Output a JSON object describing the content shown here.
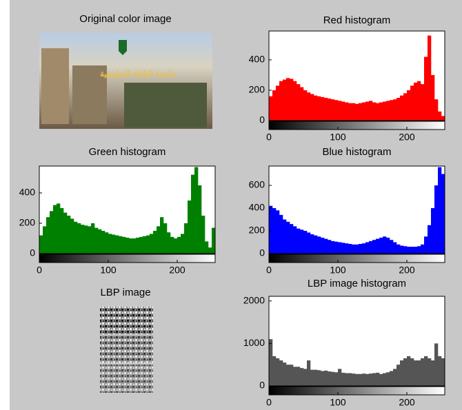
{
  "images": [
    {
      "title": "Original color image",
      "caption": "جامعة البلقاء التطبيقية"
    },
    {
      "title": "LBP image"
    }
  ],
  "chart_data": [
    {
      "type": "histogram",
      "title": "Red histogram",
      "color": "#ff0000",
      "bins": [
        0,
        5,
        10,
        15,
        20,
        25,
        30,
        35,
        40,
        45,
        50,
        55,
        60,
        65,
        70,
        75,
        80,
        85,
        90,
        95,
        100,
        105,
        110,
        115,
        120,
        125,
        130,
        135,
        140,
        145,
        150,
        155,
        160,
        165,
        170,
        175,
        180,
        185,
        190,
        195,
        200,
        205,
        210,
        215,
        220,
        225,
        230,
        235,
        240,
        245,
        250,
        255
      ],
      "values": [
        160,
        200,
        230,
        260,
        270,
        280,
        275,
        260,
        240,
        220,
        200,
        185,
        175,
        165,
        160,
        155,
        150,
        145,
        140,
        135,
        130,
        125,
        120,
        115,
        115,
        110,
        115,
        120,
        125,
        130,
        120,
        115,
        120,
        125,
        130,
        135,
        140,
        150,
        165,
        180,
        200,
        230,
        250,
        260,
        240,
        420,
        560,
        300,
        140,
        60,
        30
      ],
      "xlim": [
        0,
        255
      ],
      "xticks": [
        0,
        100,
        200
      ],
      "ylim": [
        0,
        590
      ],
      "yticks": [
        0,
        200,
        400
      ]
    },
    {
      "type": "histogram",
      "title": "Green histogram",
      "color": "#008000",
      "bins": [
        0,
        5,
        10,
        15,
        20,
        25,
        30,
        35,
        40,
        45,
        50,
        55,
        60,
        65,
        70,
        75,
        80,
        85,
        90,
        95,
        100,
        105,
        110,
        115,
        120,
        125,
        130,
        135,
        140,
        145,
        150,
        155,
        160,
        165,
        170,
        175,
        180,
        185,
        190,
        195,
        200,
        205,
        210,
        215,
        220,
        225,
        230,
        235,
        240,
        245,
        250,
        255
      ],
      "values": [
        120,
        180,
        240,
        280,
        320,
        330,
        300,
        270,
        250,
        230,
        210,
        200,
        190,
        185,
        180,
        200,
        170,
        160,
        150,
        140,
        130,
        125,
        120,
        115,
        110,
        105,
        100,
        100,
        105,
        110,
        115,
        120,
        130,
        150,
        180,
        240,
        200,
        140,
        110,
        100,
        110,
        130,
        200,
        350,
        520,
        570,
        450,
        250,
        80,
        40,
        170
      ],
      "xlim": [
        0,
        255
      ],
      "xticks": [
        0,
        100,
        200
      ],
      "ylim": [
        0,
        577
      ],
      "yticks": [
        0,
        200,
        400
      ]
    },
    {
      "type": "histogram",
      "title": "Blue histogram",
      "color": "#0000ff",
      "bins": [
        0,
        5,
        10,
        15,
        20,
        25,
        30,
        35,
        40,
        45,
        50,
        55,
        60,
        65,
        70,
        75,
        80,
        85,
        90,
        95,
        100,
        105,
        110,
        115,
        120,
        125,
        130,
        135,
        140,
        145,
        150,
        155,
        160,
        165,
        170,
        175,
        180,
        185,
        190,
        195,
        200,
        205,
        210,
        215,
        220,
        225,
        230,
        235,
        240,
        245,
        250,
        255
      ],
      "values": [
        420,
        400,
        380,
        340,
        300,
        280,
        260,
        240,
        220,
        210,
        200,
        185,
        170,
        160,
        150,
        140,
        130,
        120,
        110,
        105,
        100,
        95,
        90,
        85,
        80,
        80,
        85,
        90,
        100,
        110,
        120,
        130,
        140,
        150,
        140,
        120,
        100,
        80,
        70,
        65,
        60,
        60,
        60,
        65,
        80,
        150,
        250,
        400,
        600,
        760,
        700
      ],
      "xlim": [
        0,
        255
      ],
      "xticks": [
        0,
        100,
        200
      ],
      "ylim": [
        0,
        770
      ],
      "yticks": [
        0,
        200,
        400,
        600
      ]
    },
    {
      "type": "histogram",
      "title": "LBP image histogram",
      "color": "#555555",
      "bins": [
        0,
        5,
        10,
        15,
        20,
        25,
        30,
        35,
        40,
        45,
        50,
        55,
        60,
        65,
        70,
        75,
        80,
        85,
        90,
        95,
        100,
        105,
        110,
        115,
        120,
        125,
        130,
        135,
        140,
        145,
        150,
        155,
        160,
        165,
        170,
        175,
        180,
        185,
        190,
        195,
        200,
        205,
        210,
        215,
        220,
        225,
        230,
        235,
        240,
        245,
        250,
        255
      ],
      "values": [
        1100,
        700,
        650,
        600,
        550,
        500,
        500,
        450,
        450,
        420,
        400,
        600,
        380,
        380,
        370,
        350,
        360,
        340,
        330,
        320,
        400,
        310,
        300,
        300,
        290,
        280,
        280,
        290,
        280,
        290,
        300,
        310,
        280,
        300,
        320,
        350,
        400,
        500,
        600,
        650,
        700,
        650,
        600,
        600,
        650,
        700,
        650,
        600,
        1000,
        700,
        650
      ],
      "xlim": [
        0,
        255
      ],
      "xticks": [
        0,
        100,
        200
      ],
      "ylim": [
        0,
        2110
      ],
      "yticks": [
        0,
        1000,
        2000
      ]
    }
  ]
}
